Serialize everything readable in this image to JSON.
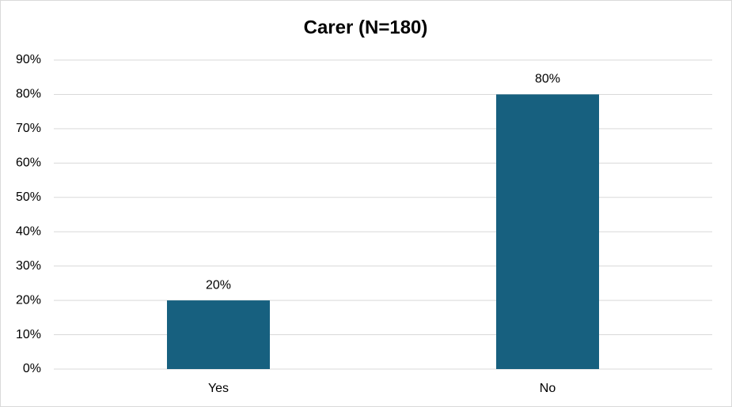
{
  "chart_data": {
    "type": "bar",
    "title": "Carer (N=180)",
    "categories": [
      "Yes",
      "No"
    ],
    "values": [
      20,
      80
    ],
    "value_labels": [
      "20%",
      "80%"
    ],
    "color": "#17607f",
    "ylim": [
      0,
      90
    ],
    "yticks": [
      {
        "value": 0,
        "label": "0%"
      },
      {
        "value": 10,
        "label": "10%"
      },
      {
        "value": 20,
        "label": "20%"
      },
      {
        "value": 30,
        "label": "30%"
      },
      {
        "value": 40,
        "label": "40%"
      },
      {
        "value": 50,
        "label": "50%"
      },
      {
        "value": 60,
        "label": "60%"
      },
      {
        "value": 70,
        "label": "70%"
      },
      {
        "value": 80,
        "label": "80%"
      },
      {
        "value": 90,
        "label": "90%"
      }
    ],
    "grid": true
  }
}
